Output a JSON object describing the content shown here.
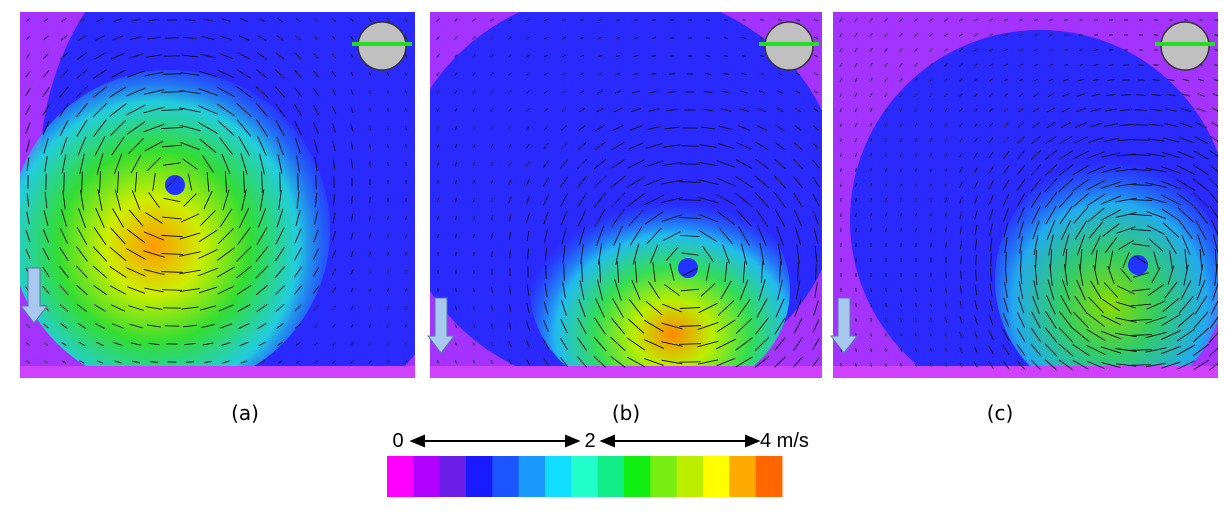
{
  "panels": [
    {
      "label": "(a)"
    },
    {
      "label": "(b)"
    },
    {
      "label": "(c)"
    }
  ],
  "colorbar": {
    "ticks": [
      "0",
      "2",
      "4 m/s"
    ]
  }
}
